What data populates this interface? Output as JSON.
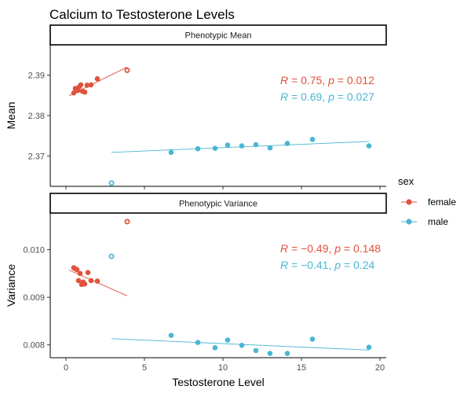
{
  "chart_data": {
    "type": "scatter",
    "title": "Calcium to Testosterone Levels",
    "xlabel": "Testosterone Level",
    "xlim": [
      -1,
      20.4
    ],
    "x_ticks": [
      0,
      5,
      10,
      15,
      20
    ],
    "x_tick_labels": [
      "0",
      "5",
      "10",
      "15",
      "20"
    ],
    "grid": false,
    "legend": {
      "title": "sex",
      "position": "right",
      "items": [
        {
          "label": "female",
          "color": "#e0533c"
        },
        {
          "label": "male",
          "color": "#4ab6d2"
        }
      ]
    },
    "panels": [
      {
        "strip": "Phenotypic Mean",
        "ylabel": "Mean",
        "ylim": [
          2.3625,
          2.3975
        ],
        "y_ticks": [
          2.37,
          2.38,
          2.39
        ],
        "y_tick_labels": [
          "2.37",
          "2.38",
          "2.39"
        ],
        "annotations": [
          {
            "prefix": "R",
            "text": " = 0.75, ",
            "p_prefix": "p",
            "p_text": " = 0.012",
            "color": "#e0533c"
          },
          {
            "prefix": "R",
            "text": " = 0.69, ",
            "p_prefix": "p",
            "p_text": " = 0.027",
            "color": "#4ab6d2"
          }
        ],
        "series": [
          {
            "name": "female",
            "color": "#e0533c",
            "points": [
              [
                0.5,
                2.3856
              ],
              [
                0.6,
                2.3867
              ],
              [
                0.75,
                2.3862
              ],
              [
                0.85,
                2.3871
              ],
              [
                0.95,
                2.3876
              ],
              [
                1.05,
                2.386
              ],
              [
                1.2,
                2.3858
              ],
              [
                1.35,
                2.3875
              ],
              [
                1.6,
                2.3876
              ],
              [
                2.0,
                2.3891
              ]
            ],
            "outliers": [
              [
                3.9,
                2.3912
              ]
            ],
            "fit": [
              [
                0.2,
                2.3849
              ],
              [
                3.9,
                2.392
              ]
            ]
          },
          {
            "name": "male",
            "color": "#4ab6d2",
            "points": [
              [
                6.7,
                2.3709
              ],
              [
                8.4,
                2.3718
              ],
              [
                9.5,
                2.3719
              ],
              [
                10.3,
                2.3727
              ],
              [
                11.2,
                2.3725
              ],
              [
                12.1,
                2.3728
              ],
              [
                13.0,
                2.372
              ],
              [
                14.1,
                2.3731
              ],
              [
                15.7,
                2.3741
              ],
              [
                19.3,
                2.3725
              ]
            ],
            "outliers": [
              [
                2.9,
                2.3633
              ]
            ],
            "fit": [
              [
                2.9,
                2.3709
              ],
              [
                19.3,
                2.3736
              ]
            ]
          }
        ]
      },
      {
        "strip": "Phenotypic Variance",
        "ylabel": "Variance",
        "ylim": [
          0.00773,
          0.01077
        ],
        "y_ticks": [
          0.008,
          0.009,
          0.01
        ],
        "y_tick_labels": [
          "0.008",
          "0.009",
          "0.010"
        ],
        "annotations": [
          {
            "prefix": "R",
            "text": " = −0.49, ",
            "p_prefix": "p",
            "p_text": " = 0.148",
            "color": "#e0533c"
          },
          {
            "prefix": "R",
            "text": " = −0.41, ",
            "p_prefix": "p",
            "p_text": " = 0.24",
            "color": "#4ab6d2"
          }
        ],
        "series": [
          {
            "name": "female",
            "color": "#e0533c",
            "points": [
              [
                0.5,
                0.00962
              ],
              [
                0.6,
                0.0096
              ],
              [
                0.7,
                0.00958
              ],
              [
                0.8,
                0.00935
              ],
              [
                0.9,
                0.0095
              ],
              [
                1.0,
                0.00927
              ],
              [
                1.1,
                0.00932
              ],
              [
                1.2,
                0.00928
              ],
              [
                1.4,
                0.00952
              ],
              [
                1.6,
                0.00935
              ],
              [
                2.0,
                0.00934
              ]
            ],
            "outliers": [
              [
                3.9,
                0.01059
              ]
            ],
            "fit": [
              [
                0.2,
                0.00957
              ],
              [
                3.9,
                0.00903
              ]
            ]
          },
          {
            "name": "male",
            "color": "#4ab6d2",
            "points": [
              [
                6.7,
                0.0082
              ],
              [
                8.4,
                0.00805
              ],
              [
                9.5,
                0.00794
              ],
              [
                10.3,
                0.0081
              ],
              [
                11.2,
                0.00799
              ],
              [
                12.1,
                0.00788
              ],
              [
                13.0,
                0.00782
              ],
              [
                14.1,
                0.00782
              ],
              [
                15.7,
                0.00812
              ],
              [
                19.3,
                0.00795
              ]
            ],
            "outliers": [
              [
                2.9,
                0.00986
              ]
            ],
            "fit": [
              [
                2.9,
                0.00813
              ],
              [
                19.3,
                0.00789
              ]
            ]
          }
        ]
      }
    ]
  }
}
